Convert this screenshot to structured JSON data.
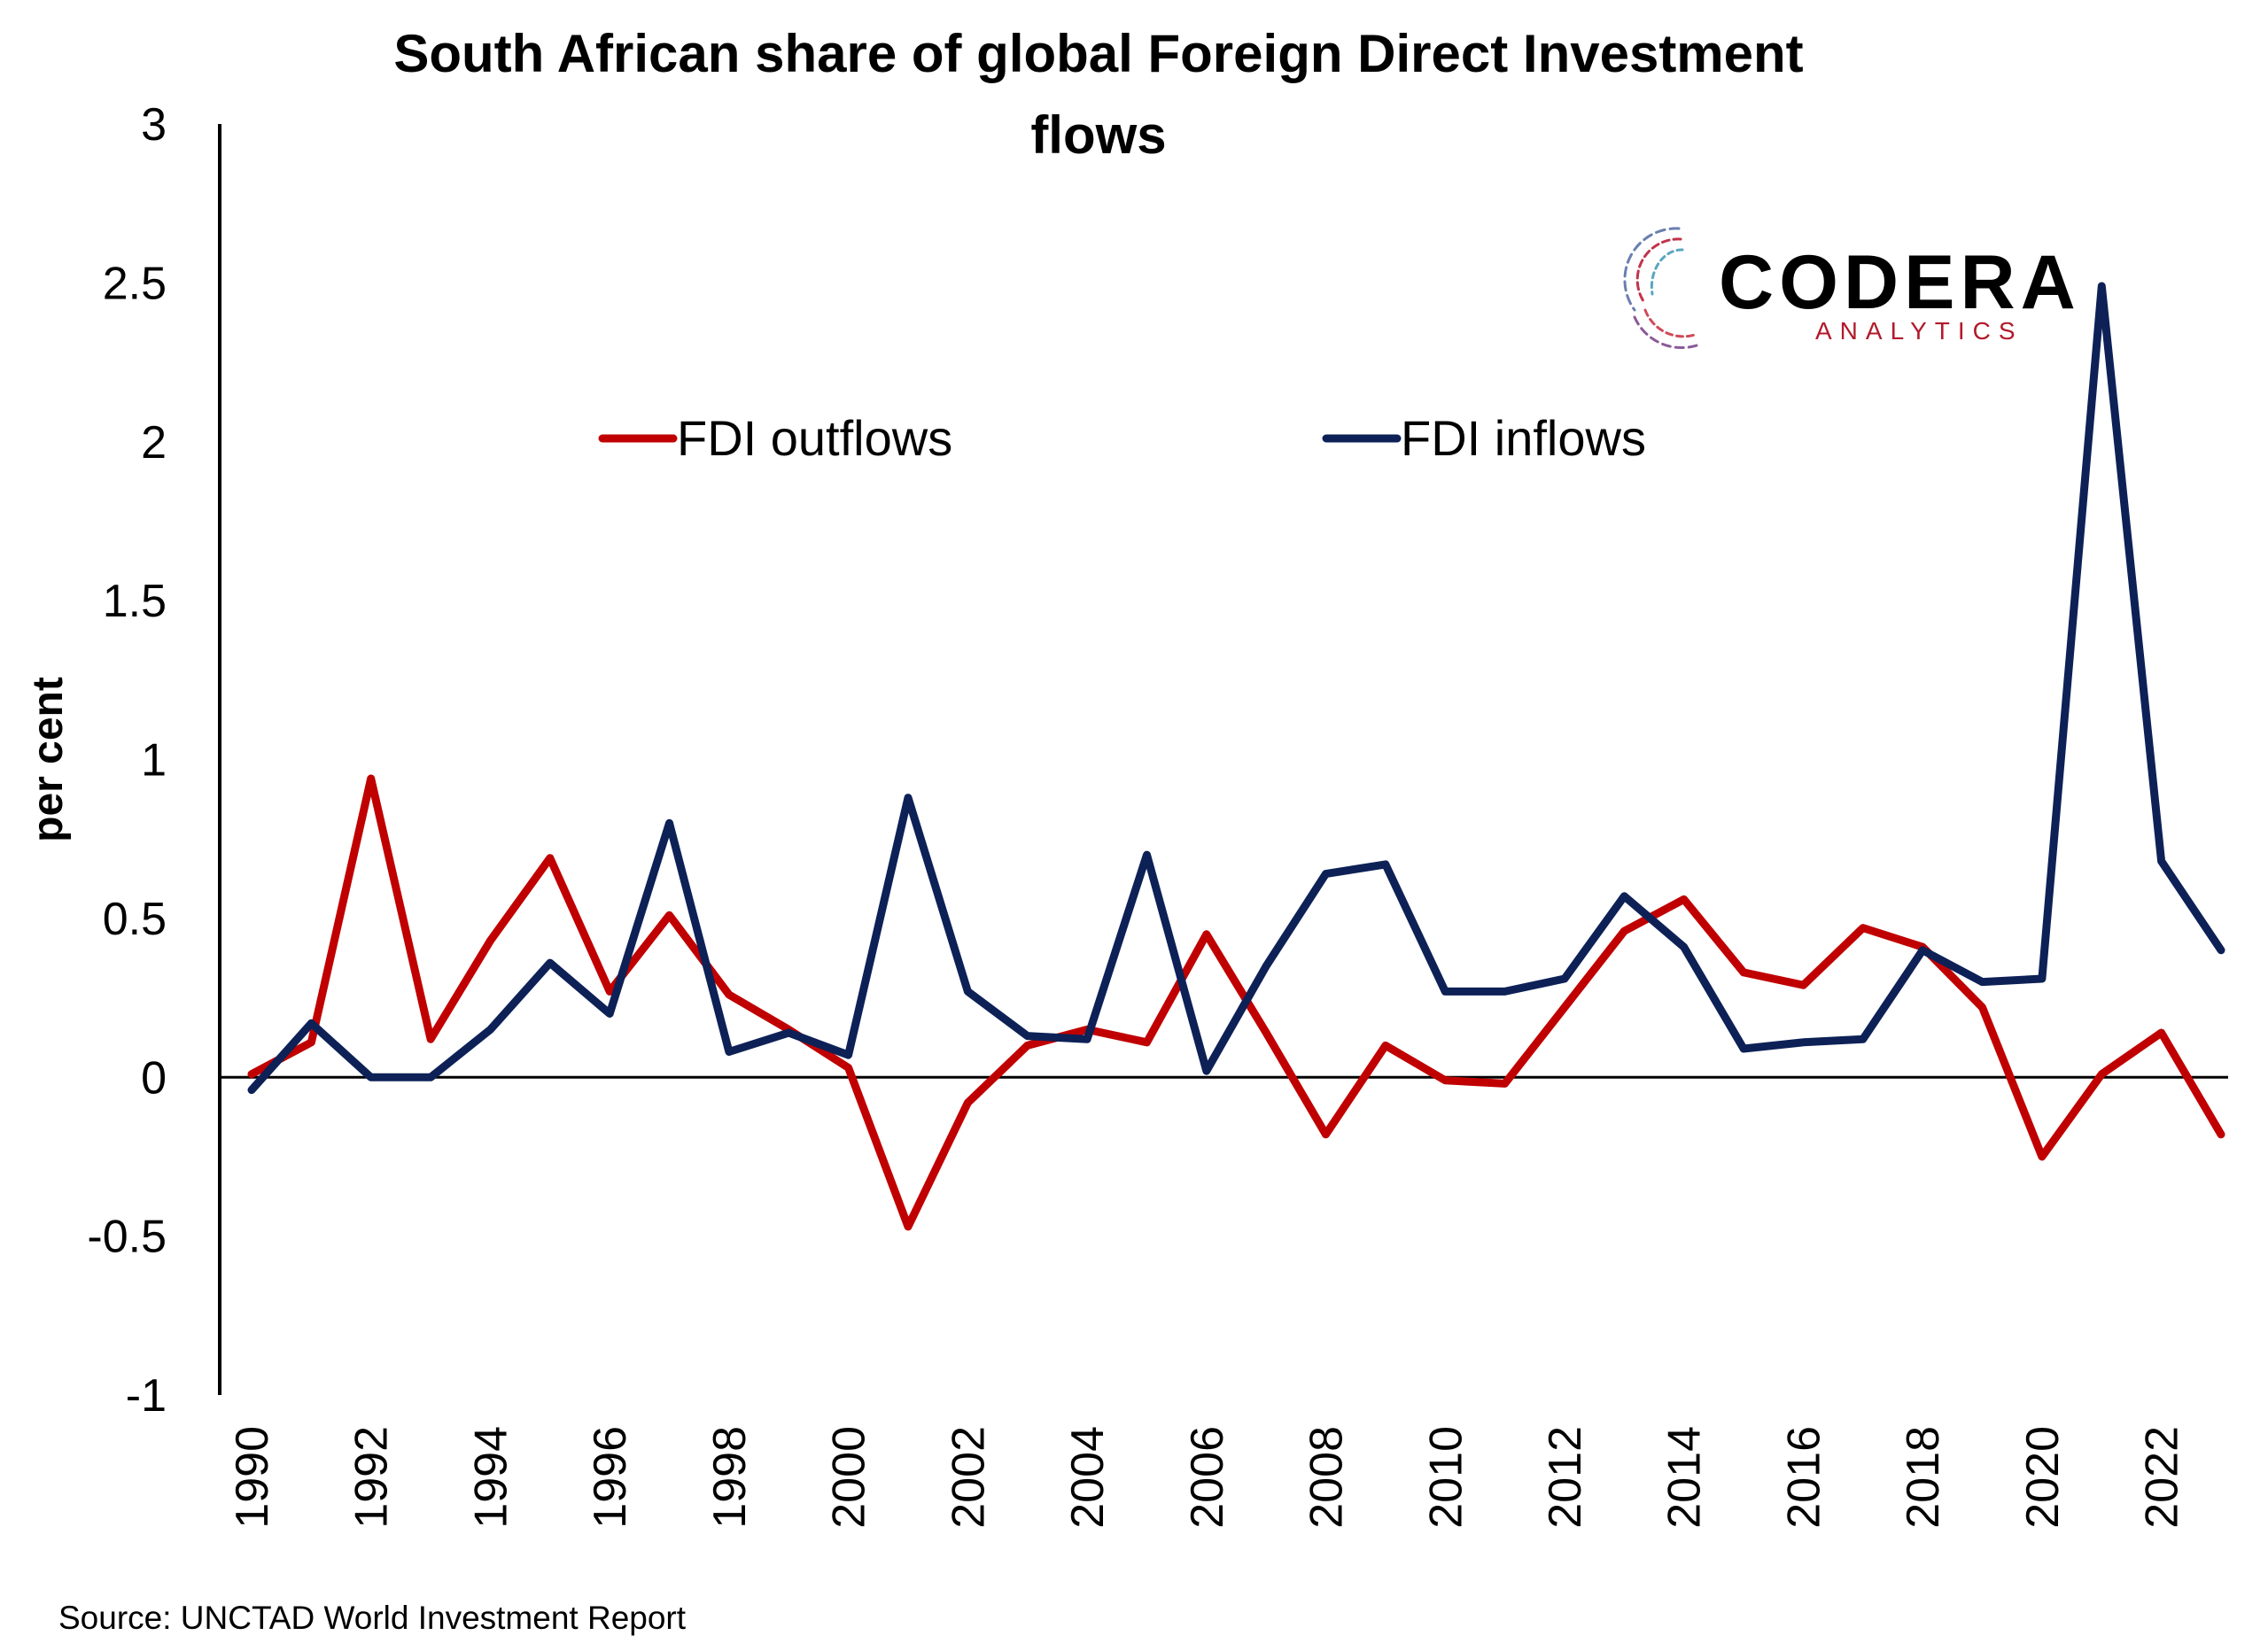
{
  "chart_data": {
    "type": "line",
    "title_line1": "South African share of global Foreign Direct Investment",
    "title_line2": "flows",
    "ylabel": "per cent",
    "xlabel": "",
    "source": "Source: UNCTAD World Investment Report",
    "ylim": [
      -1,
      3
    ],
    "y_ticks": [
      "3",
      "2.5",
      "2",
      "1.5",
      "1",
      "0.5",
      "0",
      "-0.5",
      "-1"
    ],
    "x_tick_labels": [
      "1990",
      "1992",
      "1994",
      "1996",
      "1998",
      "2000",
      "2002",
      "2004",
      "2006",
      "2008",
      "2010",
      "2012",
      "2014",
      "2016",
      "2018",
      "2020",
      "2022"
    ],
    "x": [
      1990,
      1991,
      1992,
      1993,
      1994,
      1995,
      1996,
      1997,
      1998,
      1999,
      2000,
      2001,
      2002,
      2003,
      2004,
      2005,
      2006,
      2007,
      2008,
      2009,
      2010,
      2011,
      2012,
      2013,
      2014,
      2015,
      2016,
      2017,
      2018,
      2019,
      2020,
      2021,
      2022,
      2023
    ],
    "series": [
      {
        "name": "FDI outflows",
        "color": "#c00000",
        "values": [
          0.01,
          0.11,
          0.94,
          0.12,
          0.43,
          0.69,
          0.27,
          0.51,
          0.26,
          0.15,
          0.03,
          -0.47,
          -0.08,
          0.1,
          0.15,
          0.11,
          0.45,
          0.14,
          -0.18,
          0.1,
          -0.01,
          -0.02,
          0.22,
          0.46,
          0.56,
          0.33,
          0.29,
          0.47,
          0.41,
          0.22,
          -0.25,
          0.01,
          0.14,
          -0.18
        ]
      },
      {
        "name": "FDI inflows",
        "color": "#0d2157",
        "values": [
          -0.04,
          0.17,
          0.0,
          0.0,
          0.15,
          0.36,
          0.2,
          0.8,
          0.08,
          0.14,
          0.07,
          0.88,
          0.27,
          0.13,
          0.12,
          0.7,
          0.02,
          0.35,
          0.64,
          0.67,
          0.27,
          0.27,
          0.31,
          0.57,
          0.41,
          0.09,
          0.11,
          0.12,
          0.4,
          0.3,
          0.31,
          2.49,
          0.68,
          0.4
        ]
      }
    ],
    "legend_position": "top-center",
    "grid": false
  },
  "logo": {
    "word": "CODERA",
    "sub": "ANALYTICS"
  }
}
